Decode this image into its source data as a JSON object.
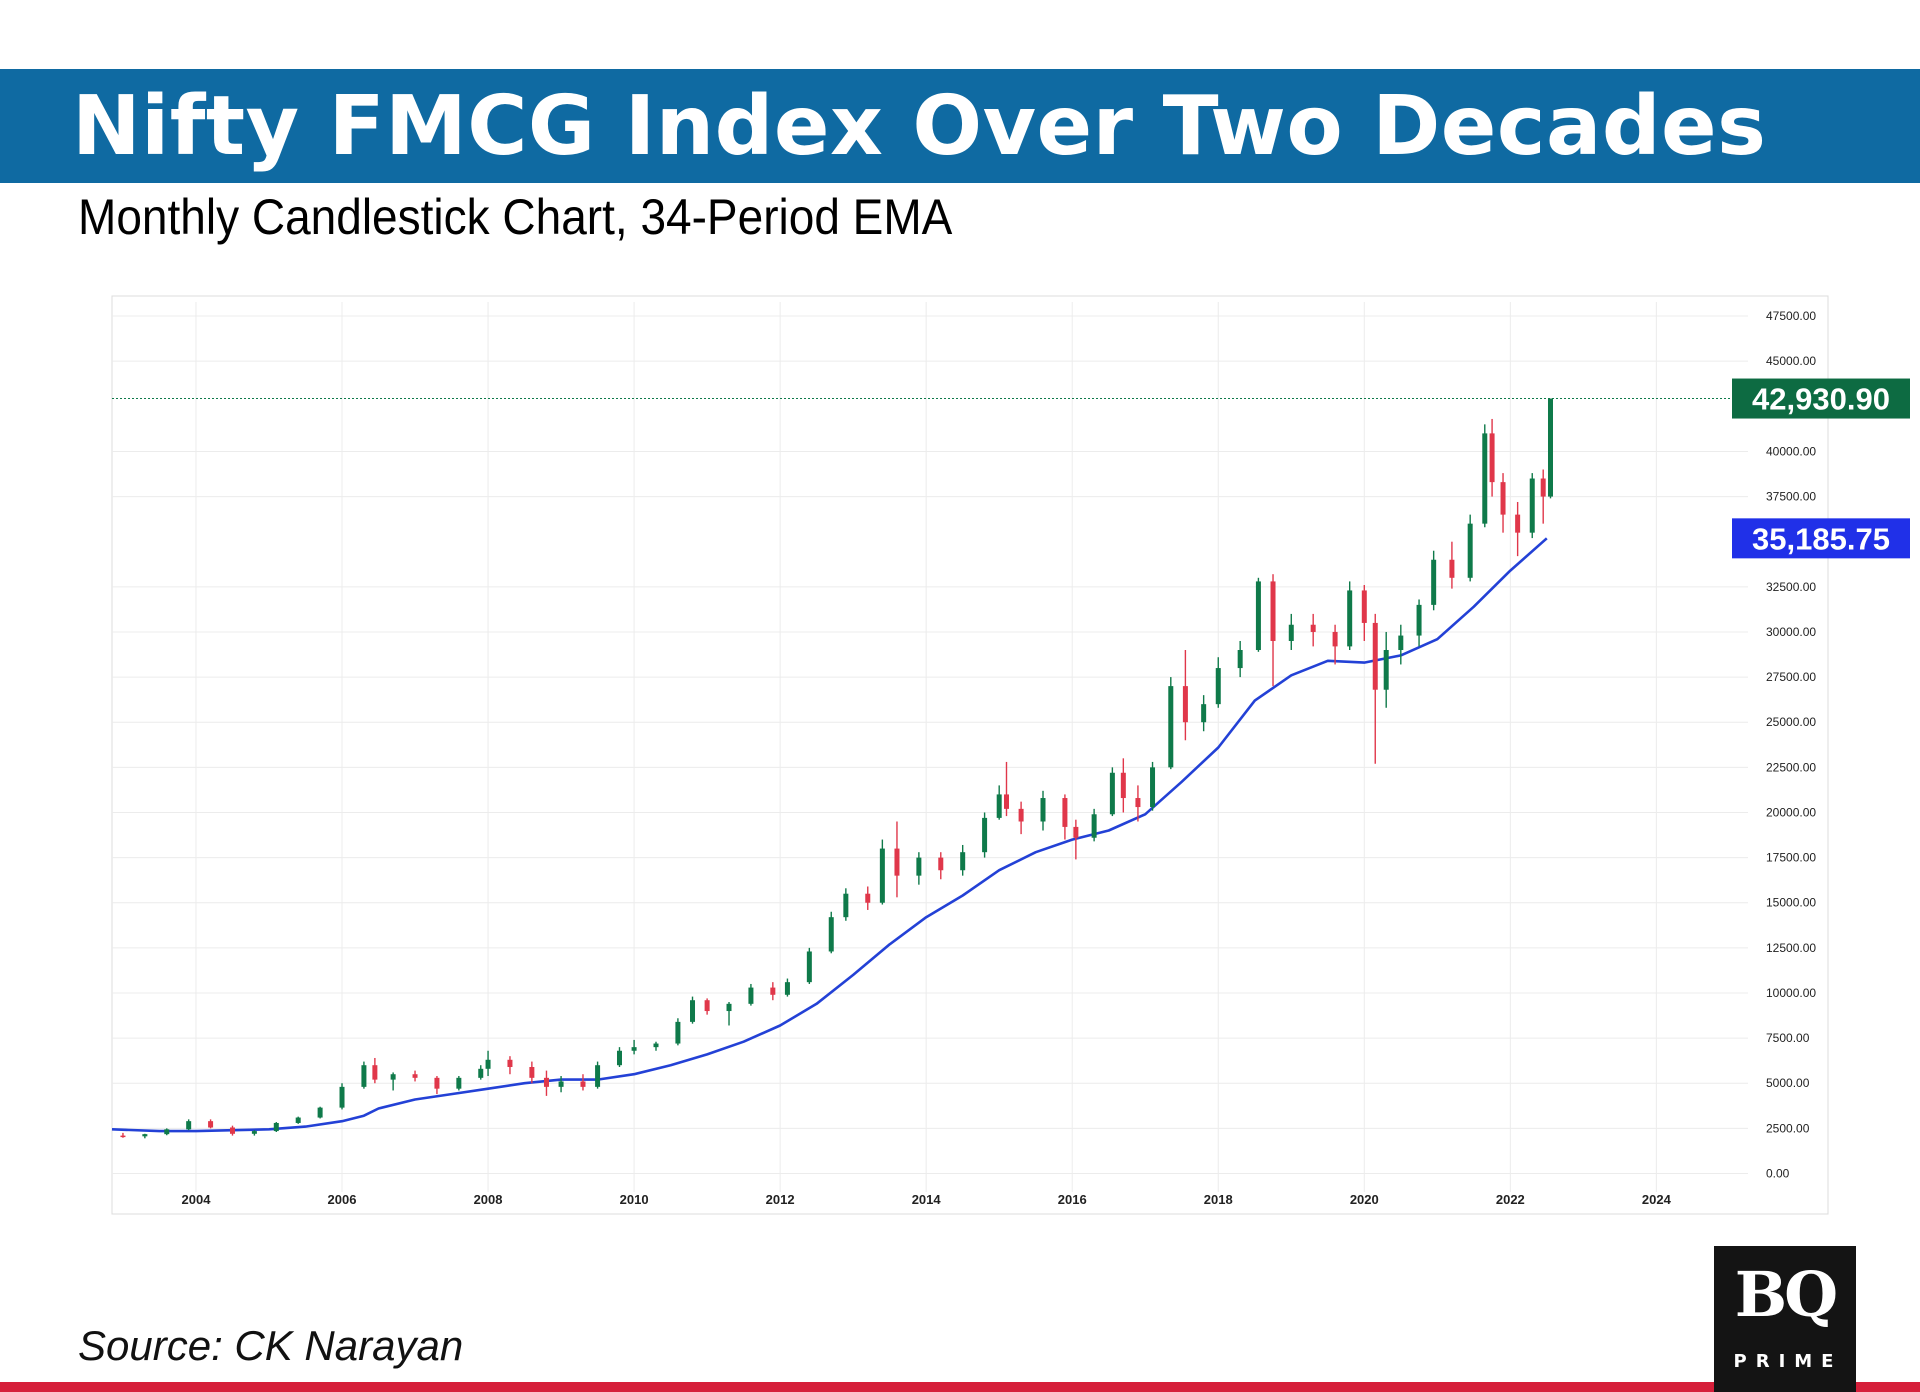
{
  "header": {
    "title": "Nifty FMCG Index Over Two Decades",
    "subtitle": "Monthly Candlestick Chart, 34-Period EMA"
  },
  "footer": {
    "source": "Source: CK Narayan",
    "logo_main": "BQ",
    "logo_sub": "PRIME"
  },
  "colors": {
    "title_band": "#0f6aa2",
    "up_candle": "#0f7a4a",
    "down_candle": "#e0374a",
    "ema_line": "#2341d6",
    "last_price_label": "#0d6b42",
    "ema_label": "#2030e8",
    "bottom_rule": "#d61f3a"
  },
  "chart_data": {
    "type": "candlestick",
    "title": "Nifty FMCG Index Over Two Decades",
    "subtitle": "Monthly Candlestick Chart, 34-Period EMA",
    "x_ticks": [
      "2004",
      "2006",
      "2008",
      "2010",
      "2012",
      "2014",
      "2016",
      "2018",
      "2020",
      "2022",
      "2024"
    ],
    "y_ticks": [
      "0.00",
      "2500.00",
      "5000.00",
      "7500.00",
      "10000.00",
      "12500.00",
      "15000.00",
      "17500.00",
      "20000.00",
      "22500.00",
      "25000.00",
      "27500.00",
      "30000.00",
      "32500.00",
      "37500.00",
      "40000.00",
      "45000.00",
      "47500.00"
    ],
    "xlim": [
      2002.85,
      2025.2
    ],
    "ylim": [
      -1800,
      48500
    ],
    "grid": true,
    "series": [
      {
        "name": "",
        "type": "line",
        "points": [
          [
            2002.85,
            2450
          ],
          [
            2003.5,
            2350
          ],
          [
            2004.0,
            2350
          ],
          [
            2004.5,
            2400
          ],
          [
            2005.0,
            2450
          ],
          [
            2005.5,
            2600
          ],
          [
            2006.0,
            2900
          ],
          [
            2006.3,
            3200
          ],
          [
            2006.5,
            3600
          ],
          [
            2007.0,
            4100
          ],
          [
            2007.5,
            4400
          ],
          [
            2008.0,
            4700
          ],
          [
            2008.5,
            5000
          ],
          [
            2009.0,
            5200
          ],
          [
            2009.5,
            5200
          ],
          [
            2010.0,
            5500
          ],
          [
            2010.5,
            6000
          ],
          [
            2011.0,
            6600
          ],
          [
            2011.5,
            7300
          ],
          [
            2012.0,
            8200
          ],
          [
            2012.5,
            9400
          ],
          [
            2013.0,
            11000
          ],
          [
            2013.5,
            12700
          ],
          [
            2014.0,
            14200
          ],
          [
            2014.5,
            15400
          ],
          [
            2015.0,
            16800
          ],
          [
            2015.5,
            17800
          ],
          [
            2016.0,
            18500
          ],
          [
            2016.5,
            19000
          ],
          [
            2017.0,
            19900
          ],
          [
            2017.5,
            21700
          ],
          [
            2018.0,
            23600
          ],
          [
            2018.5,
            26200
          ],
          [
            2019.0,
            27600
          ],
          [
            2019.5,
            28400
          ],
          [
            2020.0,
            28300
          ],
          [
            2020.5,
            28700
          ],
          [
            2021.0,
            29600
          ],
          [
            2021.5,
            31400
          ],
          [
            2022.0,
            33400
          ],
          [
            2022.5,
            35185.75
          ]
        ],
        "last_value": "35,185.75"
      }
    ],
    "candles": [
      {
        "x": 2003.0,
        "o": 2100,
        "h": 2250,
        "l": 1980,
        "c": 2060
      },
      {
        "x": 2003.3,
        "o": 2060,
        "h": 2200,
        "l": 1950,
        "c": 2180
      },
      {
        "x": 2003.6,
        "o": 2180,
        "h": 2500,
        "l": 2120,
        "c": 2450
      },
      {
        "x": 2003.9,
        "o": 2450,
        "h": 3000,
        "l": 2400,
        "c": 2900
      },
      {
        "x": 2004.2,
        "o": 2900,
        "h": 3000,
        "l": 2500,
        "c": 2550
      },
      {
        "x": 2004.5,
        "o": 2550,
        "h": 2650,
        "l": 2100,
        "c": 2200
      },
      {
        "x": 2004.8,
        "o": 2200,
        "h": 2400,
        "l": 2100,
        "c": 2350
      },
      {
        "x": 2005.1,
        "o": 2350,
        "h": 2850,
        "l": 2300,
        "c": 2800
      },
      {
        "x": 2005.4,
        "o": 2800,
        "h": 3150,
        "l": 2750,
        "c": 3100
      },
      {
        "x": 2005.7,
        "o": 3100,
        "h": 3700,
        "l": 3050,
        "c": 3650
      },
      {
        "x": 2006.0,
        "o": 3650,
        "h": 5000,
        "l": 3550,
        "c": 4800
      },
      {
        "x": 2006.3,
        "o": 4800,
        "h": 6200,
        "l": 4700,
        "c": 6000
      },
      {
        "x": 2006.45,
        "o": 6000,
        "h": 6400,
        "l": 5000,
        "c": 5200
      },
      {
        "x": 2006.7,
        "o": 5200,
        "h": 5600,
        "l": 4600,
        "c": 5500
      },
      {
        "x": 2007.0,
        "o": 5500,
        "h": 5700,
        "l": 5100,
        "c": 5300
      },
      {
        "x": 2007.3,
        "o": 5300,
        "h": 5400,
        "l": 4400,
        "c": 4700
      },
      {
        "x": 2007.6,
        "o": 4700,
        "h": 5400,
        "l": 4600,
        "c": 5300
      },
      {
        "x": 2007.9,
        "o": 5300,
        "h": 6000,
        "l": 5200,
        "c": 5800
      },
      {
        "x": 2008.0,
        "o": 5800,
        "h": 6800,
        "l": 5400,
        "c": 6300
      },
      {
        "x": 2008.3,
        "o": 6300,
        "h": 6500,
        "l": 5500,
        "c": 5900
      },
      {
        "x": 2008.6,
        "o": 5900,
        "h": 6200,
        "l": 5000,
        "c": 5300
      },
      {
        "x": 2008.8,
        "o": 5300,
        "h": 5700,
        "l": 4300,
        "c": 4800
      },
      {
        "x": 2009.0,
        "o": 4800,
        "h": 5400,
        "l": 4500,
        "c": 5100
      },
      {
        "x": 2009.3,
        "o": 5100,
        "h": 5500,
        "l": 4600,
        "c": 4800
      },
      {
        "x": 2009.5,
        "o": 4800,
        "h": 6200,
        "l": 4700,
        "c": 6000
      },
      {
        "x": 2009.8,
        "o": 6000,
        "h": 7000,
        "l": 5900,
        "c": 6800
      },
      {
        "x": 2010.0,
        "o": 6800,
        "h": 7400,
        "l": 6600,
        "c": 7000
      },
      {
        "x": 2010.3,
        "o": 7000,
        "h": 7300,
        "l": 6800,
        "c": 7200
      },
      {
        "x": 2010.6,
        "o": 7200,
        "h": 8600,
        "l": 7100,
        "c": 8400
      },
      {
        "x": 2010.8,
        "o": 8400,
        "h": 9800,
        "l": 8300,
        "c": 9600
      },
      {
        "x": 2011.0,
        "o": 9600,
        "h": 9700,
        "l": 8800,
        "c": 9000
      },
      {
        "x": 2011.3,
        "o": 9000,
        "h": 9500,
        "l": 8200,
        "c": 9400
      },
      {
        "x": 2011.6,
        "o": 9400,
        "h": 10500,
        "l": 9300,
        "c": 10300
      },
      {
        "x": 2011.9,
        "o": 10300,
        "h": 10600,
        "l": 9600,
        "c": 9900
      },
      {
        "x": 2012.1,
        "o": 9900,
        "h": 10800,
        "l": 9800,
        "c": 10600
      },
      {
        "x": 2012.4,
        "o": 10600,
        "h": 12500,
        "l": 10500,
        "c": 12300
      },
      {
        "x": 2012.7,
        "o": 12300,
        "h": 14500,
        "l": 12200,
        "c": 14200
      },
      {
        "x": 2012.9,
        "o": 14200,
        "h": 15800,
        "l": 14000,
        "c": 15500
      },
      {
        "x": 2013.2,
        "o": 15500,
        "h": 15900,
        "l": 14600,
        "c": 15000
      },
      {
        "x": 2013.4,
        "o": 15000,
        "h": 18500,
        "l": 14900,
        "c": 18000
      },
      {
        "x": 2013.6,
        "o": 18000,
        "h": 19500,
        "l": 15300,
        "c": 16500
      },
      {
        "x": 2013.9,
        "o": 16500,
        "h": 17800,
        "l": 16000,
        "c": 17500
      },
      {
        "x": 2014.2,
        "o": 17500,
        "h": 17800,
        "l": 16300,
        "c": 16800
      },
      {
        "x": 2014.5,
        "o": 16800,
        "h": 18200,
        "l": 16500,
        "c": 17800
      },
      {
        "x": 2014.8,
        "o": 17800,
        "h": 20000,
        "l": 17500,
        "c": 19700
      },
      {
        "x": 2015.0,
        "o": 19700,
        "h": 21500,
        "l": 19600,
        "c": 21000
      },
      {
        "x": 2015.1,
        "o": 21000,
        "h": 22800,
        "l": 19800,
        "c": 20200
      },
      {
        "x": 2015.3,
        "o": 20200,
        "h": 20600,
        "l": 18800,
        "c": 19500
      },
      {
        "x": 2015.6,
        "o": 19500,
        "h": 21200,
        "l": 19000,
        "c": 20800
      },
      {
        "x": 2015.9,
        "o": 20800,
        "h": 21000,
        "l": 18500,
        "c": 19200
      },
      {
        "x": 2016.05,
        "o": 19200,
        "h": 19600,
        "l": 17400,
        "c": 18600
      },
      {
        "x": 2016.3,
        "o": 18600,
        "h": 20200,
        "l": 18400,
        "c": 19900
      },
      {
        "x": 2016.55,
        "o": 19900,
        "h": 22500,
        "l": 19800,
        "c": 22200
      },
      {
        "x": 2016.7,
        "o": 22200,
        "h": 23000,
        "l": 20000,
        "c": 20800
      },
      {
        "x": 2016.9,
        "o": 20800,
        "h": 21500,
        "l": 19500,
        "c": 20300
      },
      {
        "x": 2017.1,
        "o": 20300,
        "h": 22800,
        "l": 20100,
        "c": 22500
      },
      {
        "x": 2017.35,
        "o": 22500,
        "h": 27500,
        "l": 22400,
        "c": 27000
      },
      {
        "x": 2017.55,
        "o": 27000,
        "h": 29000,
        "l": 24000,
        "c": 25000
      },
      {
        "x": 2017.8,
        "o": 25000,
        "h": 26500,
        "l": 24500,
        "c": 26000
      },
      {
        "x": 2018.0,
        "o": 26000,
        "h": 28600,
        "l": 25800,
        "c": 28000
      },
      {
        "x": 2018.3,
        "o": 28000,
        "h": 29500,
        "l": 27500,
        "c": 29000
      },
      {
        "x": 2018.55,
        "o": 29000,
        "h": 33000,
        "l": 28900,
        "c": 32800
      },
      {
        "x": 2018.75,
        "o": 32800,
        "h": 33200,
        "l": 27000,
        "c": 29500
      },
      {
        "x": 2019.0,
        "o": 29500,
        "h": 31000,
        "l": 29000,
        "c": 30400
      },
      {
        "x": 2019.3,
        "o": 30400,
        "h": 31000,
        "l": 29200,
        "c": 30000
      },
      {
        "x": 2019.6,
        "o": 30000,
        "h": 30400,
        "l": 28200,
        "c": 29200
      },
      {
        "x": 2019.8,
        "o": 29200,
        "h": 32800,
        "l": 29000,
        "c": 32300
      },
      {
        "x": 2020.0,
        "o": 32300,
        "h": 32600,
        "l": 29500,
        "c": 30500
      },
      {
        "x": 2020.15,
        "o": 30500,
        "h": 31000,
        "l": 22700,
        "c": 26800
      },
      {
        "x": 2020.3,
        "o": 26800,
        "h": 30000,
        "l": 25800,
        "c": 29000
      },
      {
        "x": 2020.5,
        "o": 29000,
        "h": 30400,
        "l": 28200,
        "c": 29800
      },
      {
        "x": 2020.75,
        "o": 29800,
        "h": 31800,
        "l": 29200,
        "c": 31500
      },
      {
        "x": 2020.95,
        "o": 31500,
        "h": 34500,
        "l": 31200,
        "c": 34000
      },
      {
        "x": 2021.2,
        "o": 34000,
        "h": 35000,
        "l": 32400,
        "c": 33000
      },
      {
        "x": 2021.45,
        "o": 33000,
        "h": 36500,
        "l": 32800,
        "c": 36000
      },
      {
        "x": 2021.65,
        "o": 36000,
        "h": 41500,
        "l": 35800,
        "c": 41000
      },
      {
        "x": 2021.75,
        "o": 41000,
        "h": 41800,
        "l": 37500,
        "c": 38300
      },
      {
        "x": 2021.9,
        "o": 38300,
        "h": 38800,
        "l": 35500,
        "c": 36500
      },
      {
        "x": 2022.1,
        "o": 36500,
        "h": 37200,
        "l": 34200,
        "c": 35500
      },
      {
        "x": 2022.3,
        "o": 35500,
        "h": 38800,
        "l": 35200,
        "c": 38500
      },
      {
        "x": 2022.45,
        "o": 38500,
        "h": 39000,
        "l": 36000,
        "c": 37500
      },
      {
        "x": 2022.55,
        "o": 37500,
        "h": 42900,
        "l": 37400,
        "c": 42930.9
      }
    ],
    "last_price": "42,930.90",
    "ema_period": 34
  }
}
